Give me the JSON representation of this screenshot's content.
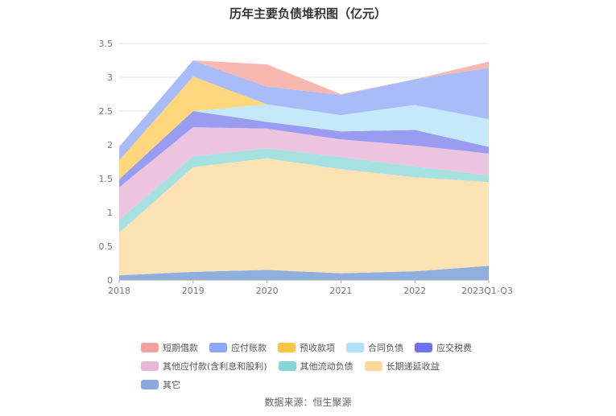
{
  "chart_data": {
    "type": "area",
    "stacked": true,
    "title": "历年主要负债堆积图（亿元）",
    "categories": [
      "2018",
      "2019",
      "2020",
      "2021",
      "2022",
      "2023Q1-Q3"
    ],
    "yticks": [
      "0",
      "0.5",
      "1",
      "1.5",
      "2",
      "2.5",
      "3",
      "3.5"
    ],
    "ylim": [
      0,
      3.5
    ],
    "grid": true,
    "legend_position": "bottom",
    "series": [
      {
        "name": "其它",
        "color": "#8fb0de",
        "values": [
          0.07,
          0.12,
          0.15,
          0.1,
          0.13,
          0.21
        ]
      },
      {
        "name": "长期递延收益",
        "color": "#fde2b4",
        "values": [
          0.63,
          1.55,
          1.65,
          1.54,
          1.39,
          1.24
        ]
      },
      {
        "name": "其他流动负债",
        "color": "#a6e1e0",
        "values": [
          0.19,
          0.16,
          0.15,
          0.18,
          0.16,
          0.1
        ]
      },
      {
        "name": "其他应付款(含利息和股利)",
        "color": "#ecc4e0",
        "values": [
          0.48,
          0.43,
          0.29,
          0.26,
          0.31,
          0.32
        ]
      },
      {
        "name": "应交税费",
        "color": "#9a9cf2",
        "values": [
          0.12,
          0.24,
          0.1,
          0.12,
          0.23,
          0.1
        ]
      },
      {
        "name": "合同负债",
        "color": "#c6e9fa",
        "values": [
          0.0,
          0.0,
          0.26,
          0.24,
          0.37,
          0.41
        ]
      },
      {
        "name": "预收款项",
        "color": "#fed67c",
        "values": [
          0.28,
          0.51,
          0.0,
          0.0,
          0.0,
          0.0
        ]
      },
      {
        "name": "应付账款",
        "color": "#a9bbf8",
        "values": [
          0.2,
          0.24,
          0.26,
          0.3,
          0.38,
          0.76
        ]
      },
      {
        "name": "短期借款",
        "color": "#f9b7b2",
        "values": [
          0.0,
          0.0,
          0.33,
          0.01,
          0.0,
          0.09
        ]
      }
    ]
  },
  "legend": {
    "row1": [
      {
        "label": "短期借款",
        "color": "#f5a29d"
      },
      {
        "label": "应付账款",
        "color": "#8ea6f5"
      },
      {
        "label": "预收款项",
        "color": "#fdc544"
      },
      {
        "label": "合同负债",
        "color": "#ade2f8"
      },
      {
        "label": "应交税费",
        "color": "#7174ef"
      }
    ],
    "row2": [
      {
        "label": "其他应付款(含利息和股利)",
        "color": "#e8b6d6"
      },
      {
        "label": "其他流动负债",
        "color": "#85d6d4"
      },
      {
        "label": "长期递延收益",
        "color": "#fdd89a"
      },
      {
        "label": "其它",
        "color": "#8aaadb"
      }
    ]
  },
  "source": "数据来源：恒生聚源"
}
